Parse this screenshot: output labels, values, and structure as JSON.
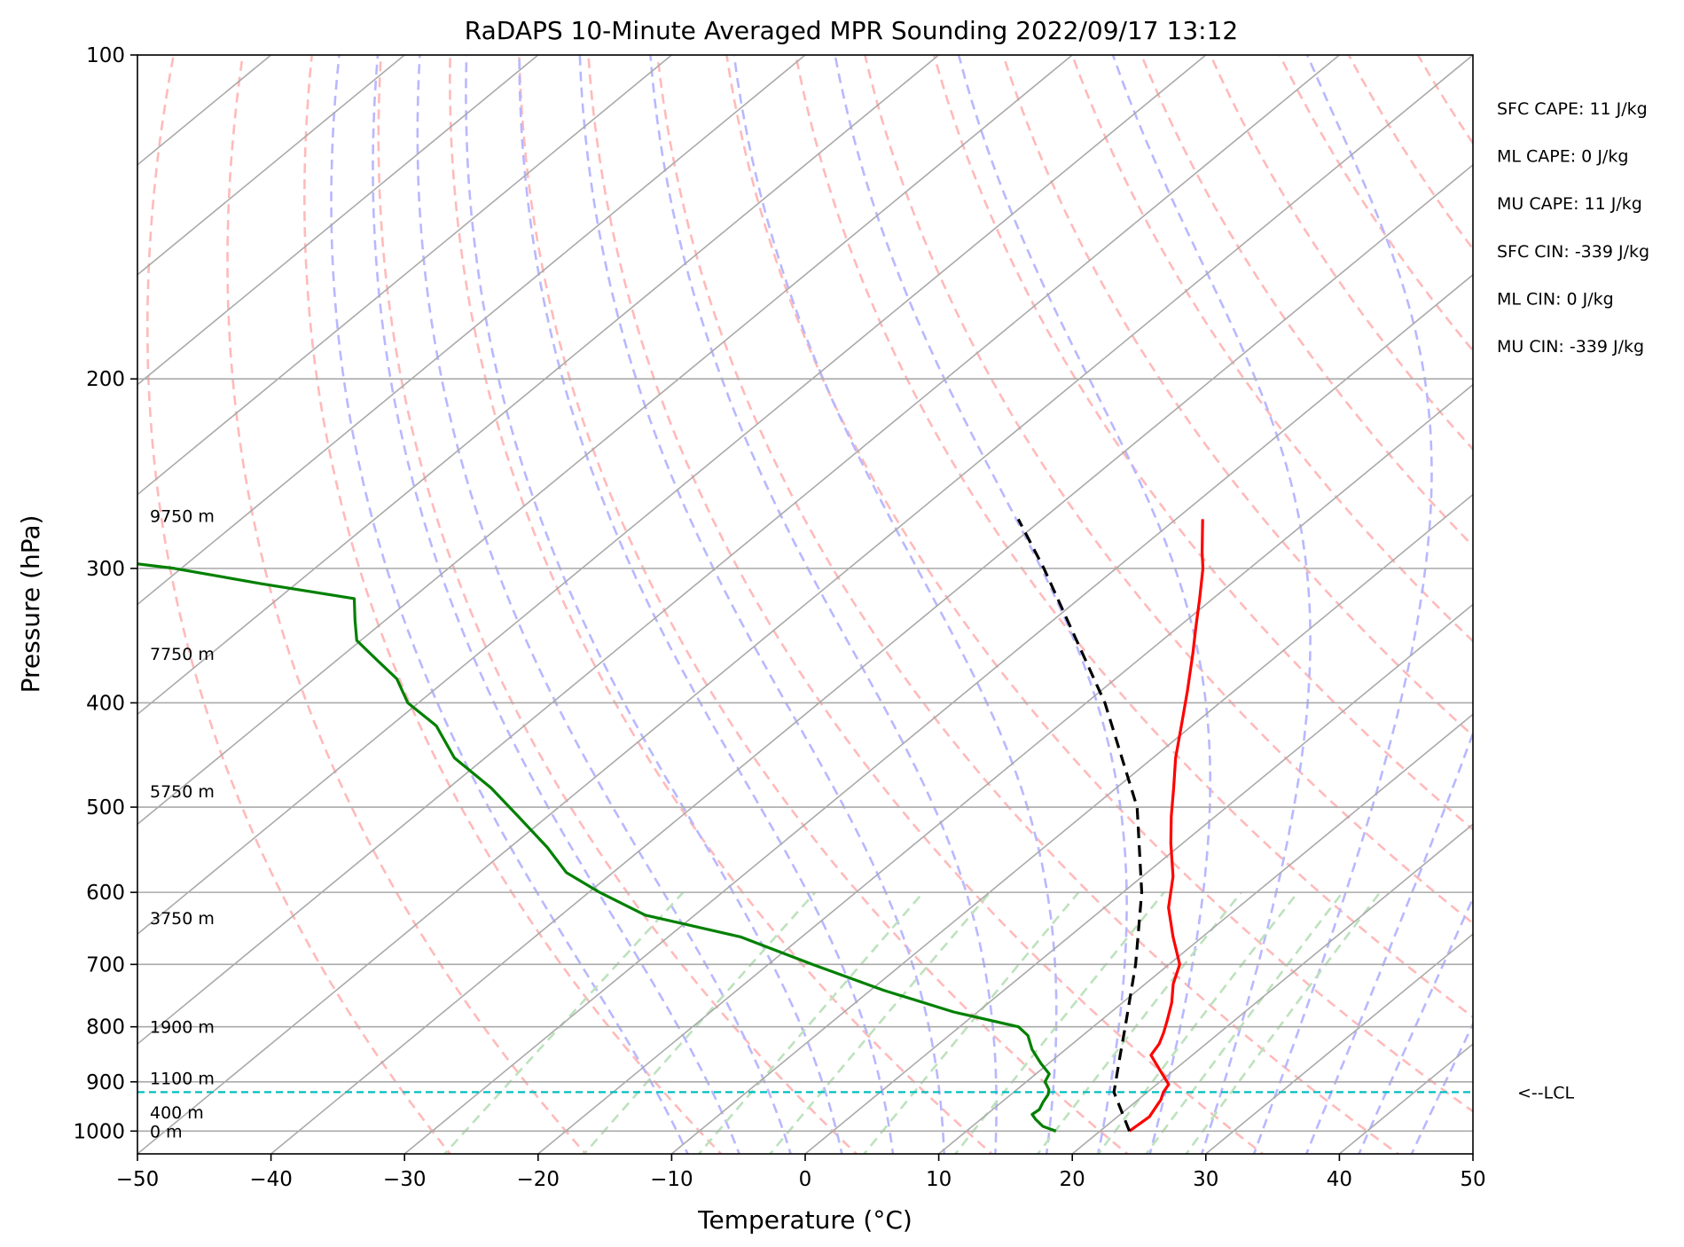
{
  "chart_data": {
    "type": "line",
    "title": "RaDAPS 10-Minute Averaged MPR Sounding 2022/09/17 13:12",
    "xlabel": "Temperature (°C)",
    "ylabel": "Pressure (hPa)",
    "xlim": [
      -50,
      50
    ],
    "ylim": [
      1050,
      100
    ],
    "y_scale": "log",
    "skew": "skew-T",
    "grid": true,
    "x_ticks": [
      -50,
      -40,
      -30,
      -20,
      -10,
      0,
      10,
      20,
      30,
      40,
      50
    ],
    "x_tick_labels": [
      "−50",
      "−40",
      "−30",
      "−20",
      "−10",
      "0",
      "10",
      "20",
      "30",
      "40",
      "50"
    ],
    "y_ticks": [
      100,
      200,
      300,
      400,
      500,
      600,
      700,
      800,
      900,
      1000
    ],
    "y_tick_labels": [
      "100",
      "200",
      "300",
      "400",
      "500",
      "600",
      "700",
      "800",
      "900",
      "1000"
    ],
    "series": [
      {
        "role": "temperature",
        "color": "#ff0000",
        "style": "solid",
        "points": [
          [
            1000,
            22.2
          ],
          [
            985,
            22.3
          ],
          [
            970,
            22.4
          ],
          [
            950,
            22.0
          ],
          [
            935,
            21.7
          ],
          [
            920,
            21.2
          ],
          [
            905,
            20.9
          ],
          [
            880,
            19.1
          ],
          [
            850,
            16.9
          ],
          [
            830,
            16.5
          ],
          [
            810,
            15.8
          ],
          [
            790,
            15.0
          ],
          [
            760,
            13.7
          ],
          [
            730,
            12.1
          ],
          [
            700,
            10.8
          ],
          [
            660,
            7.8
          ],
          [
            620,
            4.8
          ],
          [
            580,
            2.3
          ],
          [
            540,
            -0.9
          ],
          [
            510,
            -3.3
          ],
          [
            480,
            -5.7
          ],
          [
            450,
            -8.3
          ],
          [
            420,
            -10.8
          ],
          [
            390,
            -13.5
          ],
          [
            360,
            -16.5
          ],
          [
            340,
            -18.7
          ],
          [
            320,
            -21.0
          ],
          [
            300,
            -23.5
          ],
          [
            290,
            -25.0
          ],
          [
            270,
            -28.0
          ]
        ]
      },
      {
        "role": "dewpoint",
        "color": "#008000",
        "style": "solid",
        "points": [
          [
            1000,
            16.7
          ],
          [
            990,
            15.3
          ],
          [
            975,
            14.1
          ],
          [
            965,
            13.4
          ],
          [
            955,
            13.5
          ],
          [
            940,
            13.1
          ],
          [
            925,
            12.8
          ],
          [
            915,
            12.4
          ],
          [
            900,
            11.4
          ],
          [
            885,
            11.0
          ],
          [
            865,
            9.4
          ],
          [
            840,
            7.5
          ],
          [
            815,
            5.9
          ],
          [
            800,
            4.4
          ],
          [
            775,
            -1.8
          ],
          [
            740,
            -9.0
          ],
          [
            700,
            -16.7
          ],
          [
            660,
            -24.6
          ],
          [
            630,
            -33.7
          ],
          [
            600,
            -39.2
          ],
          [
            575,
            -43.5
          ],
          [
            545,
            -47.2
          ],
          [
            510,
            -52.2
          ],
          [
            480,
            -56.8
          ],
          [
            450,
            -62.3
          ],
          [
            420,
            -66.6
          ],
          [
            400,
            -70.8
          ],
          [
            380,
            -73.8
          ],
          [
            365,
            -77.0
          ],
          [
            350,
            -80.3
          ],
          [
            335,
            -82.3
          ],
          [
            320,
            -84.3
          ],
          [
            310,
            -92.6
          ],
          [
            300,
            -100.5
          ],
          [
            295,
            -106.0
          ]
        ]
      },
      {
        "role": "parcel profile",
        "color": "#000000",
        "style": "dashed",
        "points": [
          [
            1000,
            22.2
          ],
          [
            920,
            17.5
          ],
          [
            850,
            14.6
          ],
          [
            800,
            12.4
          ],
          [
            700,
            7.5
          ],
          [
            600,
            1.4
          ],
          [
            500,
            -6.7
          ],
          [
            400,
            -18.6
          ],
          [
            300,
            -35.4
          ],
          [
            270,
            -41.8
          ]
        ]
      }
    ],
    "lcl": {
      "pressure": 920,
      "label": "<--LCL",
      "color": "#00bfbf"
    },
    "height_labels": [
      {
        "text": "9750 m",
        "p": 268
      },
      {
        "text": "7750 m",
        "p": 360
      },
      {
        "text": "5750 m",
        "p": 483
      },
      {
        "text": "3750 m",
        "p": 634
      },
      {
        "text": "1900 m",
        "p": 800
      },
      {
        "text": "1100 m",
        "p": 893
      },
      {
        "text": "400 m",
        "p": 960
      },
      {
        "text": "0 m",
        "p": 1000
      }
    ],
    "indices": [
      "SFC CAPE: 11 J/kg",
      "ML CAPE: 0 J/kg",
      "MU CAPE: 11 J/kg",
      "SFC CIN: -339 J/kg",
      "ML CIN: 0 J/kg",
      "MU CIN: -339 J/kg"
    ],
    "reference_lines": {
      "isotherms": {
        "color": "#aaaaaa",
        "step": 10
      },
      "dry_adiabats": {
        "color": "#ffbaba"
      },
      "moist_adiabats": {
        "color": "#b8b8ff"
      },
      "mixing_ratio": {
        "color": "#bde2bd"
      }
    }
  }
}
